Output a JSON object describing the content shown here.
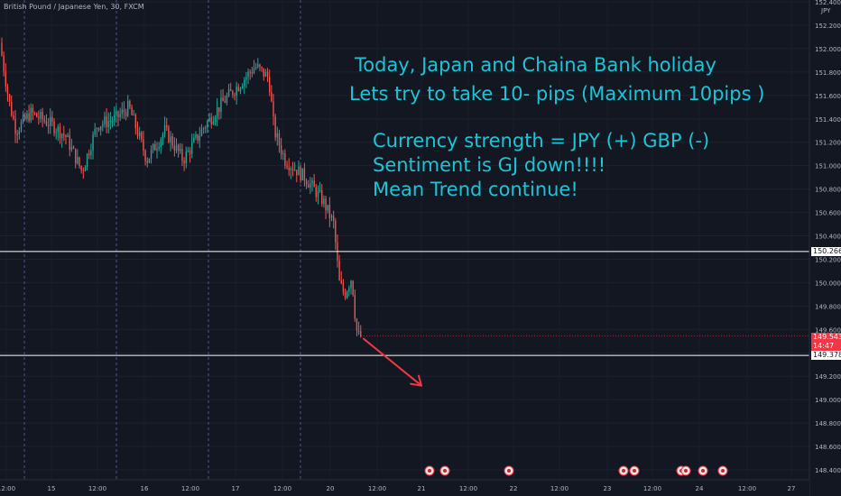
{
  "header": {
    "symbol_title": "British Pound / Japanese Yen, 30, FXCM",
    "currency_label": "JPY"
  },
  "annotations": {
    "line1": "Today, Japan and Chaina Bank holiday",
    "line2": "Lets try to take 10- pips (Maximum 10pips )",
    "line3": "Currency strength = JPY (+) GBP (-)",
    "line4": "Sentiment is GJ down!!!!",
    "line5": "Mean Trend continue!"
  },
  "price_markers": {
    "upper_level": {
      "label": "150.266",
      "bg": "#ffffff",
      "fg": "#131722"
    },
    "current_price": {
      "label": "149.543",
      "countdown": "14:47",
      "bg": "#f23645",
      "fg": "#ffffff"
    },
    "lower_level": {
      "label": "149.378",
      "bg": "#ffffff",
      "fg": "#131722"
    }
  },
  "colors": {
    "background": "#131722",
    "up": "#26a69a",
    "down": "#ef5350",
    "annotation": "#1ec3d6",
    "arrow": "#f23645",
    "level_line": "#ffffff"
  },
  "chart_data": {
    "type": "candlestick",
    "symbol": "British Pound / Japanese Yen",
    "timeframe": "30",
    "ylim": [
      148.4,
      152.4
    ],
    "y_ticks": [
      "152.400",
      "152.200",
      "152.000",
      "151.800",
      "151.600",
      "151.400",
      "151.200",
      "151.000",
      "150.800",
      "150.600",
      "150.400",
      "150.200",
      "150.000",
      "149.800",
      "149.600",
      "149.400",
      "149.200",
      "149.000",
      "148.800",
      "148.600",
      "148.400"
    ],
    "x_ticks": [
      "12:00",
      "15",
      "12:00",
      "16",
      "12:00",
      "17",
      "12:00",
      "20",
      "12:00",
      "21",
      "12:00",
      "22",
      "12:00",
      "23",
      "12:00",
      "24",
      "12:00",
      "27"
    ],
    "horizontal_levels": [
      150.266,
      149.378
    ],
    "current_price": 149.543,
    "trend_arrow": {
      "from": 149.52,
      "to": 149.12,
      "direction": "down"
    },
    "ohlc_summary": [
      {
        "period": "14 12:00",
        "open": 152.05,
        "high": 152.1,
        "low": 151.45,
        "close": 151.55
      },
      {
        "period": "14 late",
        "open": 151.55,
        "high": 151.6,
        "low": 151.2,
        "close": 151.3
      },
      {
        "period": "15",
        "open": 151.3,
        "high": 151.55,
        "low": 151.15,
        "close": 151.4
      },
      {
        "period": "15 low",
        "open": 151.4,
        "high": 151.45,
        "low": 150.85,
        "close": 151.05
      },
      {
        "period": "15 12:00",
        "open": 151.05,
        "high": 151.45,
        "low": 151.0,
        "close": 151.35
      },
      {
        "period": "16",
        "open": 151.35,
        "high": 151.55,
        "low": 151.1,
        "close": 151.2
      },
      {
        "period": "16 12:00",
        "open": 151.2,
        "high": 151.45,
        "low": 150.9,
        "close": 151.1
      },
      {
        "period": "16 late",
        "open": 151.1,
        "high": 151.5,
        "low": 151.0,
        "close": 151.4
      },
      {
        "period": "17",
        "open": 151.4,
        "high": 151.8,
        "low": 151.35,
        "close": 151.7
      },
      {
        "period": "17 12:00",
        "open": 151.7,
        "high": 151.95,
        "low": 151.5,
        "close": 151.8
      },
      {
        "period": "17 late",
        "open": 151.8,
        "high": 151.85,
        "low": 151.0,
        "close": 151.1
      },
      {
        "period": "20",
        "open": 151.1,
        "high": 151.2,
        "low": 150.6,
        "close": 150.7
      },
      {
        "period": "20 early",
        "open": 150.7,
        "high": 150.75,
        "low": 150.1,
        "close": 150.2
      },
      {
        "period": "20 12:00",
        "open": 150.2,
        "high": 150.3,
        "low": 149.55,
        "close": 149.54
      }
    ]
  },
  "calendar_events": {
    "count": 9,
    "icon": "flag-icon"
  }
}
